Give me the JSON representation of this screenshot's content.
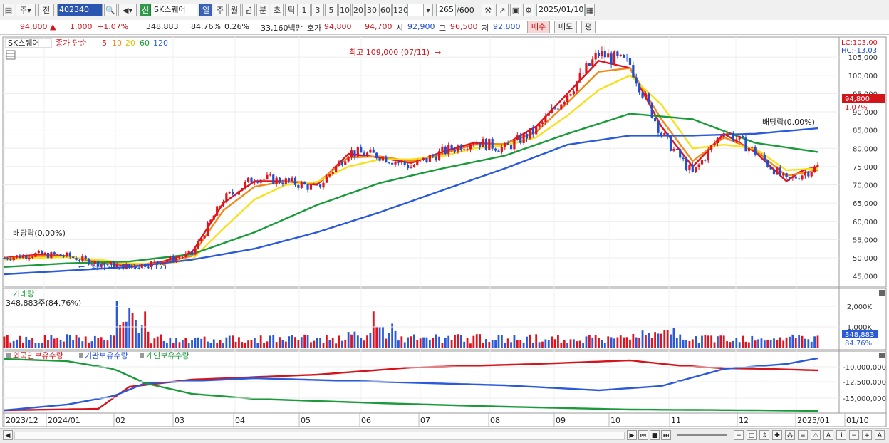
{
  "toolbar": {
    "market_label": "주",
    "all_label": "전",
    "code": "402340",
    "stock_name": "SK스퀘어",
    "period_tabs": [
      "일",
      "주",
      "월",
      "년",
      "분",
      "초",
      "틱"
    ],
    "minute_tabs": [
      "1",
      "3",
      "5",
      "10",
      "20",
      "30",
      "60",
      "120"
    ],
    "count": "265",
    "total": "/600",
    "date": "2025/01/10",
    "new_badge": "신"
  },
  "quote": {
    "price": "94,800",
    "change": "1,000",
    "change_pct": "+1.07%",
    "volume": "348,883",
    "vol_ratio": "84.76%",
    "turnover": "0.26%",
    "amount": "33,160백만",
    "ask_label": "호가",
    "ask": "94,800",
    "bid": "94,700",
    "open_label": "시",
    "open": "92,900",
    "high_label": "고",
    "high": "96,500",
    "low_label": "저",
    "low": "92,800",
    "buy_button": "매수",
    "sell_button": "매도",
    "eval_button": "평"
  },
  "legend": {
    "name": "SK스퀘어",
    "ma_label": "종가 단순",
    "ma_periods": [
      "5",
      "10",
      "20",
      "60",
      "120"
    ]
  },
  "annotations": {
    "high_label": "최고 109,000 (07/11)",
    "low_label": "최저 46,700 (01/17)",
    "dividend_left": "배당락(0.00%)",
    "dividend_right": "배당락(0.00%)",
    "lc": "LC:103.00",
    "hc": "HC:-13.03",
    "last_price": "94,800",
    "last_pct": "1.07%"
  },
  "volume_panel": {
    "title": "거래량",
    "value_label": "348,883주(84.76%)",
    "last_value": "348,883",
    "last_pct": "84.76%"
  },
  "holding_panel": {
    "labels": [
      "외국인보유수량",
      "기관보유수량",
      "개인보유수량"
    ]
  },
  "chart_data": {
    "type": "line",
    "title": "",
    "price_ticks": [
      45000,
      50000,
      55000,
      60000,
      65000,
      70000,
      75000,
      80000,
      85000,
      90000,
      95000,
      100000,
      105000
    ],
    "price_tick_labels": [
      "45,000",
      "50,000",
      "55,000",
      "60,000",
      "65,000",
      "70,000",
      "75,000",
      "80,000",
      "85,000",
      "90,000",
      "95,000",
      "100,000",
      "105,000"
    ],
    "price_range": [
      42000,
      110500
    ],
    "x_labels": [
      "2023/12",
      "2024/01",
      "02",
      "03",
      "04",
      "05",
      "06",
      "07",
      "08",
      "09",
      "10",
      "11",
      "12",
      "2025/01",
      "01/10"
    ],
    "close_path": {
      "x": [
        0,
        10,
        20,
        30,
        40,
        50,
        60,
        70,
        80,
        90,
        100,
        110,
        120,
        130,
        140,
        150,
        160,
        170,
        180,
        190,
        200,
        210,
        220,
        230,
        240,
        250,
        260
      ],
      "y": [
        50000,
        51000,
        50500,
        48500,
        47500,
        49000,
        51000,
        66000,
        72000,
        71000,
        69000,
        79000,
        78000,
        75000,
        79000,
        82000,
        80000,
        85000,
        95000,
        106000,
        103000,
        84000,
        73000,
        85000,
        79000,
        71000,
        75000
      ]
    },
    "series": [
      {
        "name": "5",
        "color": "#e0141e",
        "x": [
          0,
          10,
          20,
          30,
          40,
          50,
          60,
          70,
          80,
          90,
          100,
          110,
          120,
          130,
          140,
          150,
          160,
          170,
          180,
          190,
          200,
          210,
          220,
          230,
          240,
          250,
          255,
          260
        ],
        "y": [
          50000,
          50800,
          50500,
          48800,
          47800,
          48800,
          51500,
          65000,
          71000,
          71000,
          70000,
          78500,
          77500,
          76000,
          79000,
          81500,
          81000,
          86000,
          95000,
          104000,
          102000,
          86000,
          75000,
          84000,
          79000,
          71000,
          74000,
          75000
        ]
      },
      {
        "name": "10",
        "color": "#f08a1c",
        "x": [
          0,
          10,
          20,
          30,
          40,
          50,
          60,
          70,
          80,
          90,
          100,
          110,
          120,
          130,
          140,
          150,
          160,
          170,
          180,
          190,
          200,
          210,
          220,
          230,
          240,
          250,
          260
        ],
        "y": [
          49800,
          50500,
          50400,
          49000,
          48000,
          48500,
          50500,
          63000,
          69500,
          71000,
          70500,
          77500,
          77800,
          76500,
          78500,
          81000,
          81200,
          84500,
          92500,
          101000,
          102000,
          88000,
          76500,
          83000,
          79500,
          72500,
          74000
        ]
      },
      {
        "name": "20",
        "color": "#f7e11e",
        "x": [
          0,
          10,
          20,
          30,
          40,
          50,
          60,
          70,
          80,
          90,
          100,
          110,
          120,
          130,
          140,
          150,
          160,
          170,
          180,
          190,
          200,
          210,
          220,
          230,
          240,
          250,
          260
        ],
        "y": [
          49500,
          50000,
          50200,
          49500,
          48500,
          48200,
          49500,
          58000,
          66000,
          70000,
          70800,
          75000,
          77000,
          77000,
          77800,
          80000,
          80800,
          83000,
          89000,
          96000,
          100000,
          92000,
          80000,
          81000,
          80000,
          74000,
          74500
        ]
      },
      {
        "name": "60",
        "color": "#1a9a3a",
        "x": [
          0,
          20,
          40,
          60,
          80,
          100,
          120,
          140,
          160,
          180,
          200,
          220,
          240,
          260
        ],
        "y": [
          47500,
          48500,
          49000,
          51000,
          57000,
          64500,
          70500,
          74500,
          78000,
          84000,
          89500,
          88000,
          81500,
          79000
        ]
      },
      {
        "name": "120",
        "color": "#2a5ad8",
        "x": [
          0,
          20,
          40,
          60,
          80,
          100,
          120,
          140,
          160,
          180,
          200,
          220,
          240,
          260
        ],
        "y": [
          45500,
          46500,
          47500,
          49500,
          52500,
          57000,
          62500,
          68500,
          74500,
          81000,
          83500,
          83500,
          84000,
          85500
        ]
      }
    ],
    "volume_ticks": [
      "1,000K",
      "2,000K"
    ],
    "holding_ticks": [
      "-10,000,000",
      "-12,500,000",
      "-15,000,000"
    ],
    "grid": true,
    "legend_position": "top-left"
  }
}
